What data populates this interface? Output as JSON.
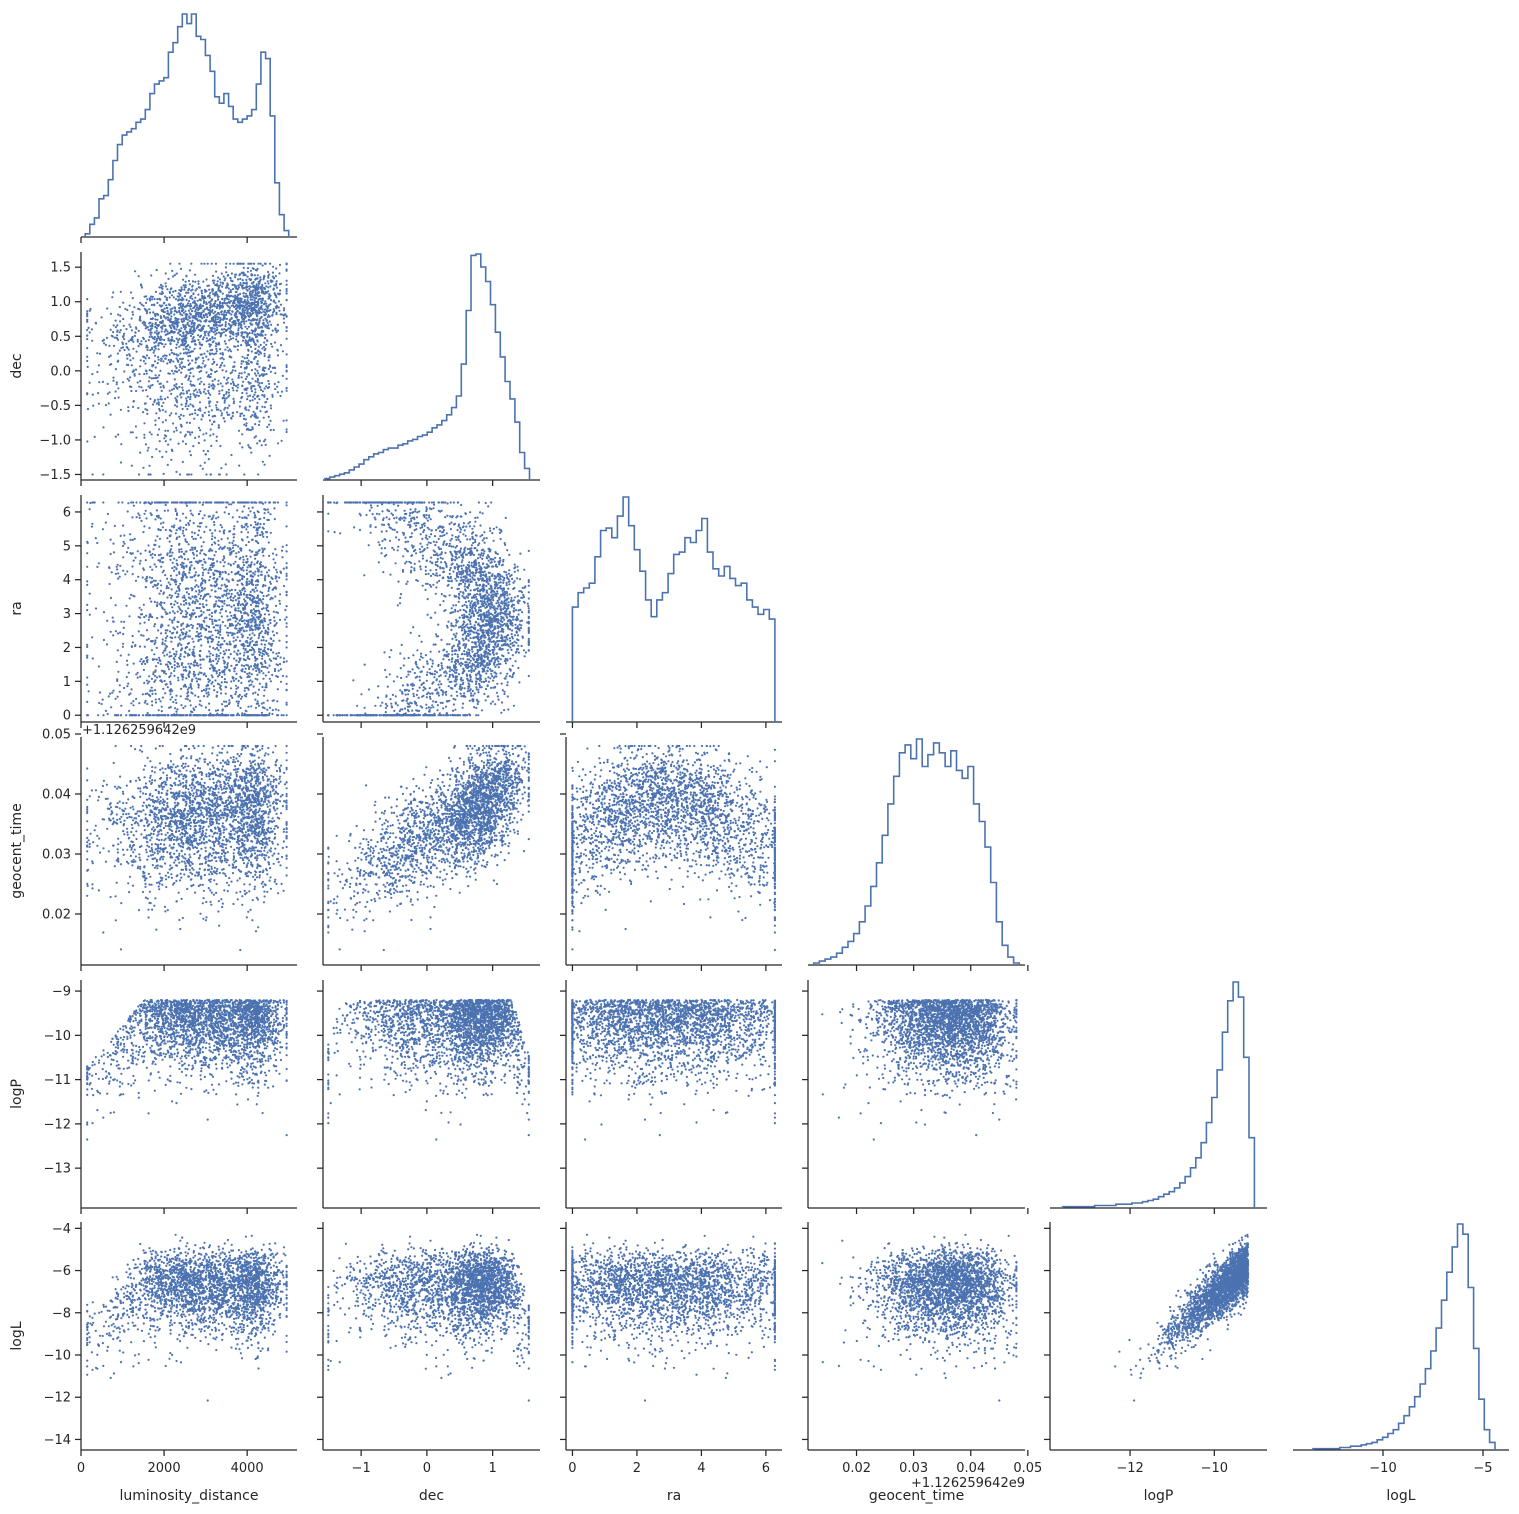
{
  "chart_data": {
    "type": "scatter",
    "layout": "corner-pairplot",
    "marker_color": "#4c72b0",
    "variables": [
      "luminosity_distance",
      "dec",
      "ra",
      "geocent_time",
      "logP",
      "logL"
    ],
    "row_labels": [
      "",
      "dec",
      "ra",
      "geocent_time",
      "logP",
      "logL"
    ],
    "col_labels": [
      "luminosity_distance",
      "dec",
      "ra",
      "geocent_time",
      "logP",
      "logL"
    ],
    "offset_labels": {
      "geocent_time_y": "+1.126259642e9",
      "geocent_time_x": "+1.126259642e9"
    },
    "ranges": {
      "luminosity_distance": [
        0,
        5200
      ],
      "dec": [
        -1.58,
        1.72
      ],
      "ra": [
        -0.2,
        6.5
      ],
      "geocent_time": [
        0.0115,
        0.0495
      ],
      "logP": [
        -13.9,
        -8.75
      ],
      "logL": [
        -14.5,
        -3.7
      ]
    },
    "ticks": {
      "luminosity_distance": {
        "values": [
          0,
          2000,
          4000
        ],
        "labels": [
          "0",
          "2000",
          "4000"
        ]
      },
      "dec_y": {
        "values": [
          -1.5,
          -1.0,
          -0.5,
          0.0,
          0.5,
          1.0,
          1.5
        ],
        "labels": [
          "−1.5",
          "−1.0",
          "−0.5",
          "0.0",
          "0.5",
          "1.0",
          "1.5"
        ]
      },
      "dec_x": {
        "values": [
          -1,
          0,
          1
        ],
        "labels": [
          "−1",
          "0",
          "1"
        ]
      },
      "ra": {
        "values": [
          0,
          1,
          2,
          3,
          4,
          5,
          6
        ],
        "labels": [
          "0",
          "1",
          "2",
          "3",
          "4",
          "5",
          "6"
        ]
      },
      "ra_x": {
        "values": [
          0,
          2,
          4,
          6
        ],
        "labels": [
          "0",
          "2",
          "4",
          "6"
        ]
      },
      "geocent_time_y": {
        "values": [
          0.02,
          0.03,
          0.04,
          0.05
        ],
        "labels": [
          "0.02",
          "0.03",
          "0.04",
          "0.05"
        ]
      },
      "geocent_time_x": {
        "values": [
          0.02,
          0.03,
          0.04,
          0.05
        ],
        "labels": [
          "0.02",
          "0.03",
          "0.04",
          "0.05"
        ]
      },
      "logP_y": {
        "values": [
          -13,
          -12,
          -11,
          -10,
          -9
        ],
        "labels": [
          "−13",
          "−12",
          "−11",
          "−10",
          "−9"
        ]
      },
      "logP_x": {
        "values": [
          -12,
          -10
        ],
        "labels": [
          "−12",
          "−10"
        ]
      },
      "logL_y": {
        "values": [
          -14,
          -12,
          -10,
          -8,
          -6,
          -4
        ],
        "labels": [
          "−14",
          "−12",
          "−10",
          "−8",
          "−6",
          "−4"
        ]
      },
      "logL_x": {
        "values": [
          -10,
          -5
        ],
        "labels": [
          "−10",
          "−5"
        ]
      }
    },
    "histograms": {
      "luminosity_distance": {
        "edges": [
          100,
          5000
        ],
        "counts": [
          1,
          4,
          6,
          12,
          13,
          18,
          24,
          29,
          32,
          33,
          34,
          36,
          37,
          40,
          45,
          48,
          49,
          50,
          58,
          61,
          66,
          70,
          67,
          70,
          63,
          62,
          57,
          52,
          44,
          42,
          45,
          41,
          37,
          36,
          37,
          38,
          40,
          48,
          58,
          56,
          38,
          17,
          7,
          2
        ]
      },
      "dec": {
        "edges": [
          -1.55,
          1.56
        ],
        "counts": [
          1,
          2,
          3,
          4,
          5,
          7,
          9,
          11,
          14,
          16,
          18,
          19,
          21,
          22,
          22,
          24,
          25,
          27,
          28,
          30,
          31,
          33,
          36,
          38,
          41,
          45,
          50,
          58,
          80,
          117,
          155,
          156,
          147,
          137,
          121,
          102,
          85,
          68,
          56,
          40,
          19,
          8
        ]
      },
      "ra": {
        "edges": [
          0,
          6.28
        ],
        "counts": [
          48,
          54,
          56,
          58,
          69,
          80,
          81,
          77,
          86,
          94,
          82,
          72,
          63,
          51,
          44,
          51,
          54,
          62,
          70,
          71,
          77,
          75,
          80,
          85,
          71,
          64,
          61,
          65,
          60,
          57,
          58,
          51,
          48,
          45,
          47,
          43
        ]
      },
      "geocent_time": {
        "edges": [
          0.0125,
          0.0485
        ],
        "counts": [
          1,
          2,
          3,
          4,
          6,
          9,
          12,
          16,
          22,
          30,
          40,
          52,
          66,
          82,
          96,
          108,
          112,
          105,
          115,
          101,
          107,
          113,
          108,
          101,
          109,
          99,
          95,
          101,
          82,
          73,
          60,
          42,
          22,
          10,
          4,
          1
        ]
      },
      "logP": {
        "edges": [
          -13.6,
          -9.05
        ],
        "counts": [
          1,
          1,
          1,
          1,
          1,
          1,
          2,
          2,
          2,
          2,
          3,
          3,
          3,
          4,
          4,
          5,
          6,
          7,
          9,
          11,
          13,
          16,
          20,
          25,
          32,
          40,
          52,
          68,
          88,
          110,
          140,
          165,
          180,
          168,
          120,
          56
        ]
      },
      "logL": {
        "edges": [
          -13.5,
          -4.4
        ],
        "counts": [
          1,
          1,
          1,
          1,
          1,
          2,
          2,
          3,
          3,
          4,
          5,
          6,
          8,
          10,
          13,
          16,
          21,
          27,
          34,
          42,
          52,
          64,
          78,
          96,
          118,
          140,
          160,
          178,
          170,
          128,
          80,
          40,
          16,
          6
        ]
      }
    },
    "scatter_points_per_panel": 2600,
    "scatter_description_model": {
      "dec_vs_luminosity_distance": "dec rises with distance; concentrated near 0.5–1.2 for d > 2500",
      "ra_vs_dec": "C-shaped structure, dense near dec 0.5–1.5 and ra 3–5",
      "geocent_time_vs_dec": "geocent_time increases roughly linearly with dec",
      "logL_vs_logP": "strong positive correlation"
    }
  }
}
